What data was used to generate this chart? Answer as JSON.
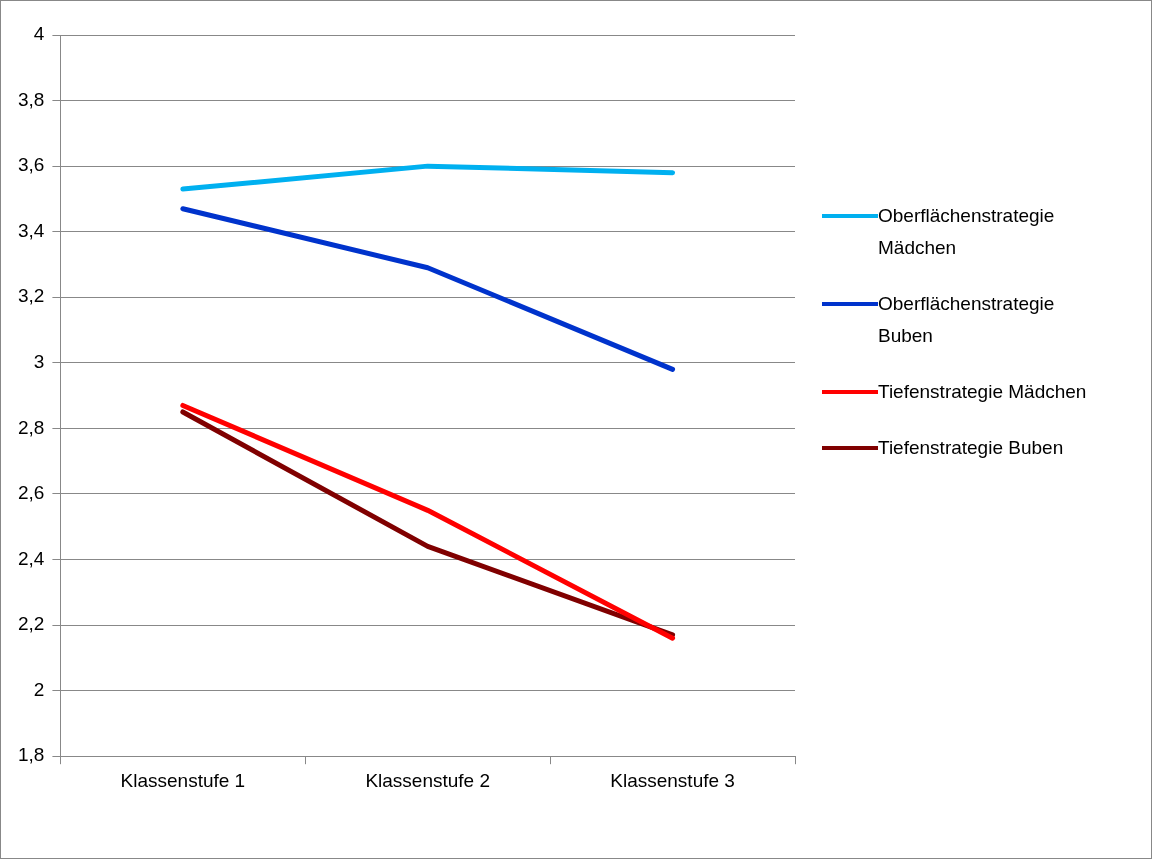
{
  "chart_data": {
    "type": "line",
    "categories": [
      "Klassenstufe 1",
      "Klassenstufe 2",
      "Klassenstufe 3"
    ],
    "series": [
      {
        "name": "Oberflächenstrategie Mädchen",
        "color": "#00b0f0",
        "values": [
          3.53,
          3.6,
          3.58
        ]
      },
      {
        "name": "Oberflächenstrategie Buben",
        "color": "#0033cc",
        "values": [
          3.47,
          3.29,
          2.98
        ]
      },
      {
        "name": "Tiefenstrategie Mädchen",
        "color": "#ff0000",
        "values": [
          2.87,
          2.55,
          2.16
        ]
      },
      {
        "name": "Tiefenstrategie Buben",
        "color": "#800000",
        "values": [
          2.85,
          2.44,
          2.17
        ]
      }
    ],
    "ylim": [
      1.8,
      4
    ],
    "yticks": [
      {
        "value": 1.8,
        "label": "1,8"
      },
      2,
      {
        "value": 2.2,
        "label": "2,2"
      },
      {
        "value": 2.4,
        "label": "2,4"
      },
      {
        "value": 2.6,
        "label": "2,6"
      },
      {
        "value": 2.8,
        "label": "2,8"
      },
      3,
      {
        "value": 3.2,
        "label": "3,2"
      },
      {
        "value": 3.4,
        "label": "3,4"
      },
      {
        "value": 3.6,
        "label": "3,6"
      },
      {
        "value": 3.8,
        "label": "3,8"
      },
      4
    ],
    "grid": "y",
    "legend": "right",
    "marker": "none",
    "line_style": "solid"
  }
}
